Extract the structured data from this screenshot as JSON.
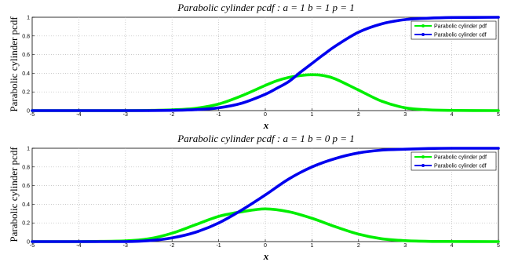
{
  "chart_data": [
    {
      "type": "line",
      "title": "Parabolic cylinder pcdf : a = 1 b = 1 p = 1",
      "xlabel": "x",
      "ylabel": "Parabolic cylinder pcdf",
      "xlim": [
        -5,
        5
      ],
      "ylim": [
        0,
        1
      ],
      "xticks": [
        -5,
        -4,
        -3,
        -2,
        -1,
        0,
        1,
        2,
        3,
        4,
        5
      ],
      "yticks": [
        0,
        0.2,
        0.4,
        0.6,
        0.8,
        1
      ],
      "grid": true,
      "legend_position": "top-right",
      "x": [
        -5,
        -4,
        -3,
        -2.5,
        -2,
        -1.5,
        -1,
        -0.5,
        0,
        0.25,
        0.5,
        0.75,
        1,
        1.25,
        1.5,
        2,
        2.5,
        3,
        3.5,
        4,
        5
      ],
      "series": [
        {
          "name": "Parabolic cylinder pdf",
          "color": "#00ee00",
          "values": [
            0,
            0,
            0,
            0.002,
            0.008,
            0.024,
            0.07,
            0.16,
            0.27,
            0.32,
            0.355,
            0.375,
            0.385,
            0.375,
            0.34,
            0.22,
            0.1,
            0.03,
            0.008,
            0.002,
            0
          ]
        },
        {
          "name": "Parabolic cylinder cdf",
          "color": "#0000ee",
          "values": [
            0,
            0,
            0,
            0,
            0.003,
            0.01,
            0.03,
            0.08,
            0.175,
            0.24,
            0.31,
            0.41,
            0.505,
            0.6,
            0.69,
            0.84,
            0.93,
            0.975,
            0.99,
            0.997,
            1
          ]
        }
      ]
    },
    {
      "type": "line",
      "title": "Parabolic cylinder pcdf : a = 1 b = 0 p = 1",
      "xlabel": "x",
      "ylabel": "Parabolic cylinder pcdf",
      "xlim": [
        -5,
        5
      ],
      "ylim": [
        0,
        1
      ],
      "xticks": [
        -5,
        -4,
        -3,
        -2,
        -1,
        0,
        1,
        2,
        3,
        4,
        5
      ],
      "yticks": [
        0,
        0.2,
        0.4,
        0.6,
        0.8,
        1
      ],
      "grid": true,
      "legend_position": "top-right",
      "x": [
        -5,
        -4,
        -3,
        -2.5,
        -2,
        -1.5,
        -1,
        -0.5,
        0,
        0.5,
        1,
        1.5,
        2,
        2.5,
        3,
        3.5,
        4,
        5
      ],
      "series": [
        {
          "name": "Parabolic cylinder pdf",
          "color": "#00ee00",
          "values": [
            0,
            0,
            0.008,
            0.03,
            0.09,
            0.18,
            0.27,
            0.32,
            0.35,
            0.32,
            0.25,
            0.16,
            0.08,
            0.03,
            0.01,
            0.003,
            0.001,
            0
          ]
        },
        {
          "name": "Parabolic cylinder cdf",
          "color": "#0000ee",
          "values": [
            0,
            0,
            0,
            0.01,
            0.04,
            0.1,
            0.2,
            0.34,
            0.5,
            0.67,
            0.8,
            0.89,
            0.95,
            0.98,
            0.99,
            0.997,
            1,
            1
          ]
        }
      ]
    }
  ]
}
